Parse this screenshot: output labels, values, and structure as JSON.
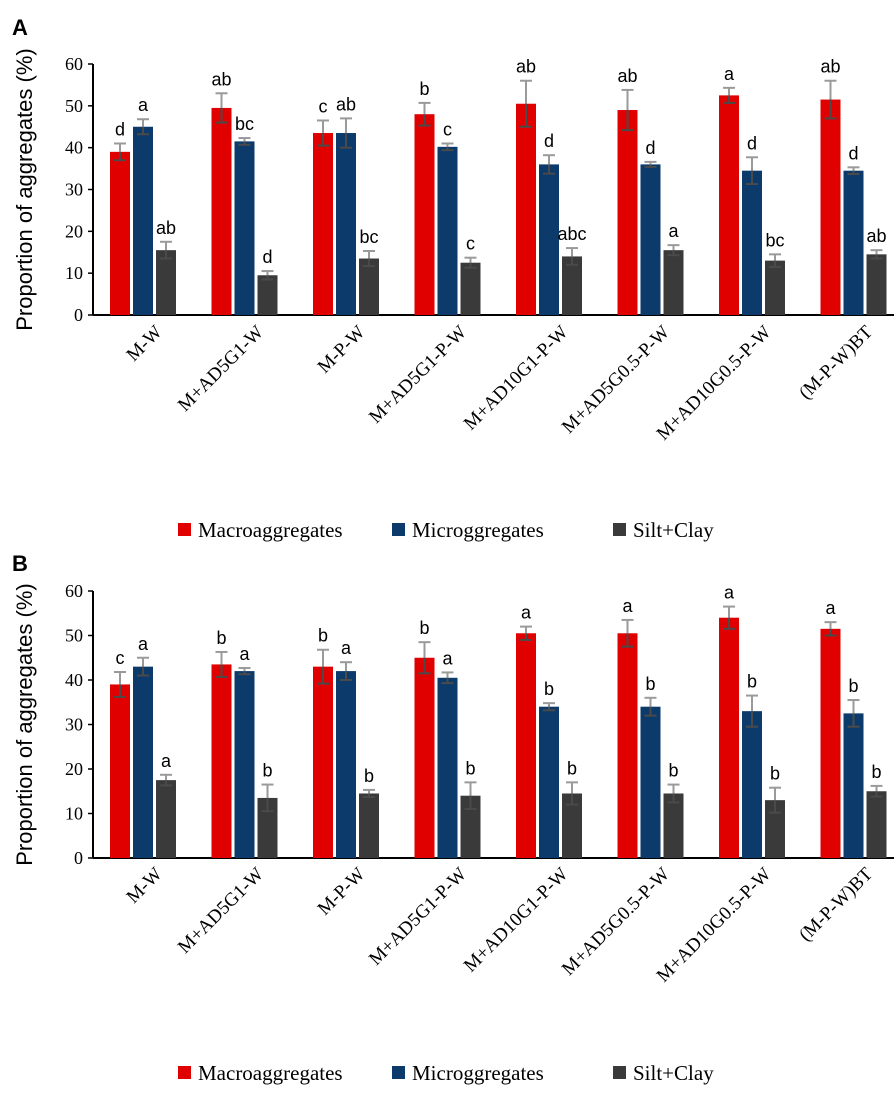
{
  "chart_data": [
    {
      "panel": "A",
      "type": "bar",
      "ylabel": "Proportion of aggregates (%)",
      "ylim": [
        0,
        60
      ],
      "yticks": [
        0,
        10,
        20,
        30,
        40,
        50,
        60
      ],
      "categories": [
        "M-W",
        "M+AD5G1-W",
        "M-P-W",
        "M+AD5G1-P-W",
        "M+AD10G1-P-W",
        "M+AD5G0.5-P-W",
        "M+AD10G0.5-P-W",
        "(M-P-W)BT"
      ],
      "series": [
        {
          "name": "Macroaggregates",
          "color": "#e00000",
          "values": [
            39,
            49.5,
            43.5,
            48,
            50.5,
            49,
            52.5,
            51.5
          ],
          "errors": [
            2,
            3.5,
            3,
            2.7,
            5.5,
            4.8,
            1.8,
            4.5
          ],
          "letters": [
            "d",
            "ab",
            "c",
            "b",
            "ab",
            "ab",
            "a",
            "ab"
          ]
        },
        {
          "name": "Microggregates",
          "color": "#0b3a6b",
          "values": [
            45,
            41.5,
            43.5,
            40.2,
            36,
            36,
            34.5,
            34.5
          ],
          "errors": [
            1.8,
            0.8,
            3.5,
            0.8,
            2.2,
            0.6,
            3.2,
            0.8
          ],
          "letters": [
            "a",
            "bc",
            "ab",
            "c",
            "d",
            "d",
            "d",
            "d"
          ]
        },
        {
          "name": "Silt+Clay",
          "color": "#3a3a3a",
          "values": [
            15.5,
            9.5,
            13.5,
            12.5,
            14,
            15.5,
            13,
            14.5
          ],
          "errors": [
            2,
            1,
            1.8,
            1.2,
            2,
            1.2,
            1.5,
            1
          ],
          "letters": [
            "ab",
            "d",
            "bc",
            "c",
            "abc",
            "a",
            "bc",
            "ab"
          ]
        }
      ]
    },
    {
      "panel": "B",
      "type": "bar",
      "ylabel": "Proportion of aggregates (%)",
      "ylim": [
        0,
        60
      ],
      "yticks": [
        0,
        10,
        20,
        30,
        40,
        50,
        60
      ],
      "categories": [
        "M-W",
        "M+AD5G1-W",
        "M-P-W",
        "M+AD5G1-P-W",
        "M+AD10G1-P-W",
        "M+AD5G0.5-P-W",
        "M+AD10G0.5-P-W",
        "(M-P-W)BT"
      ],
      "series": [
        {
          "name": "Macroaggregates",
          "color": "#e00000",
          "values": [
            39,
            43.5,
            43,
            45,
            50.5,
            50.5,
            54,
            51.5
          ],
          "errors": [
            2.8,
            2.8,
            3.8,
            3.5,
            1.5,
            3,
            2.5,
            1.5
          ],
          "letters": [
            "c",
            "b",
            "b",
            "b",
            "a",
            "a",
            "a",
            "a"
          ]
        },
        {
          "name": "Microggregates",
          "color": "#0b3a6b",
          "values": [
            43,
            42,
            42,
            40.5,
            34,
            34,
            33,
            32.5
          ],
          "errors": [
            2,
            0.7,
            2,
            1.2,
            0.8,
            2,
            3.5,
            3
          ],
          "letters": [
            "a",
            "a",
            "a",
            "a",
            "b",
            "b",
            "b",
            "b"
          ]
        },
        {
          "name": "Silt+Clay",
          "color": "#3a3a3a",
          "values": [
            17.5,
            13.5,
            14.5,
            14,
            14.5,
            14.5,
            13,
            15
          ],
          "errors": [
            1.2,
            3,
            0.8,
            3,
            2.5,
            2,
            2.8,
            1.2
          ],
          "letters": [
            "a",
            "b",
            "b",
            "b",
            "b",
            "b",
            "b",
            "b"
          ]
        }
      ]
    }
  ]
}
